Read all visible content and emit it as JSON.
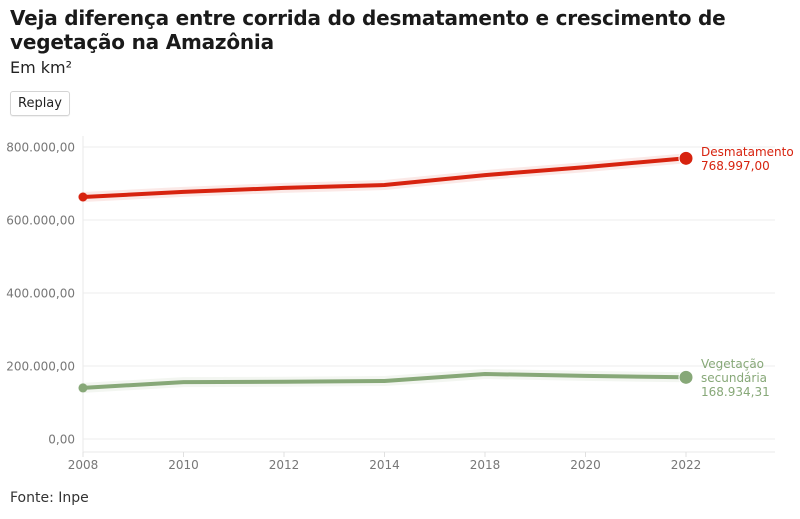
{
  "header": {
    "title": "Veja diferença entre corrida do desmatamento e crescimento de vegetação na Amazônia",
    "subtitle": "Em km²",
    "replay_label": "Replay"
  },
  "footer": {
    "source": "Fonte: Inpe"
  },
  "chart_data": {
    "type": "line",
    "title": "Veja diferença entre corrida do desmatamento e crescimento de vegetação na Amazônia",
    "subtitle": "Em km²",
    "xlabel": "",
    "ylabel": "",
    "categories": [
      "2008",
      "2010",
      "2012",
      "2014",
      "2018",
      "2020",
      "2022"
    ],
    "ylim": [
      0,
      800000
    ],
    "yticks": [
      0,
      200000,
      400000,
      600000,
      800000
    ],
    "ytick_labels": [
      "0,00",
      "200.000,00",
      "400.000,00",
      "600.000,00",
      "800.000,00"
    ],
    "grid": true,
    "legend": "end-of-line labels (right)",
    "series": [
      {
        "name": "Desmatamento",
        "color": "#d7230f",
        "values": [
          663000,
          677000,
          688000,
          696000,
          723000,
          745000,
          768997
        ],
        "end_label_lines": [
          "Desmatamento"
        ],
        "end_value_label": "768.997,00"
      },
      {
        "name": "Vegetação secundária",
        "color": "#87a878",
        "values": [
          140000,
          156000,
          157000,
          159000,
          178000,
          173000,
          168934.31
        ],
        "end_label_lines": [
          "Vegetação",
          "secundária"
        ],
        "end_value_label": "168.934,31"
      }
    ]
  }
}
